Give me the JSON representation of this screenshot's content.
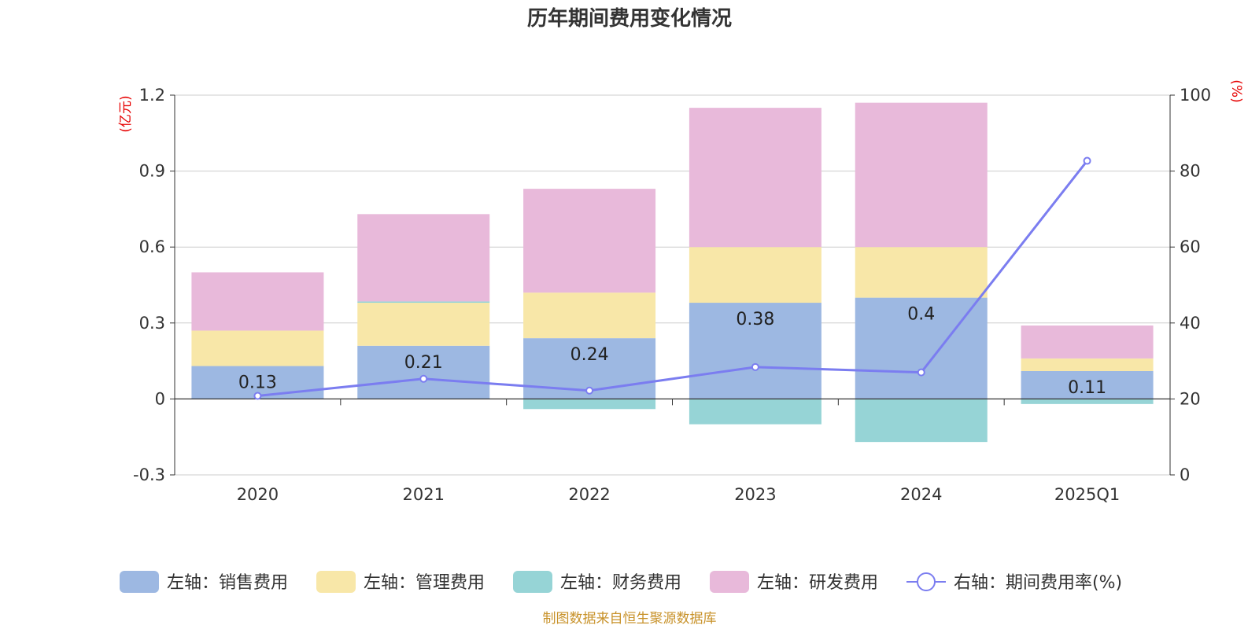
{
  "chart_data": {
    "type": "bar",
    "title": "历年期间费用变化情况",
    "categories": [
      "2020",
      "2021",
      "2022",
      "2023",
      "2024",
      "2025Q1"
    ],
    "left_axis": {
      "unit": "(亿元)",
      "ylim": [
        -0.3,
        1.2
      ],
      "ticks": [
        -0.3,
        0,
        0.3,
        0.6,
        0.9,
        1.2
      ]
    },
    "right_axis": {
      "unit": "(%)",
      "ylim": [
        0,
        100
      ],
      "ticks": [
        0,
        20,
        40,
        60,
        80,
        100
      ]
    },
    "stacked": true,
    "grid": true,
    "legend_position": "bottom",
    "series": [
      {
        "name": "左轴：销售费用",
        "type": "bar",
        "axis": "left",
        "color": "#9db8e2",
        "values": [
          0.13,
          0.21,
          0.24,
          0.38,
          0.4,
          0.11
        ]
      },
      {
        "name": "左轴：管理费用",
        "type": "bar",
        "axis": "left",
        "color": "#f8e7a8",
        "values": [
          0.14,
          0.17,
          0.18,
          0.22,
          0.2,
          0.05
        ]
      },
      {
        "name": "左轴：财务费用",
        "type": "bar",
        "axis": "left",
        "color": "#96d4d6",
        "values": [
          0.0,
          0.005,
          -0.04,
          -0.1,
          -0.17,
          -0.02
        ]
      },
      {
        "name": "左轴：研发费用",
        "type": "bar",
        "axis": "left",
        "color": "#e8b9da",
        "values": [
          0.23,
          0.345,
          0.41,
          0.55,
          0.57,
          0.13
        ]
      },
      {
        "name": "右轴：期间费用率(%)",
        "type": "line",
        "axis": "right",
        "color": "#7b7df0",
        "values": [
          20.8,
          25.3,
          22.2,
          28.4,
          27.0,
          82.7
        ]
      }
    ],
    "data_labels": [
      "0.13",
      "0.21",
      "0.24",
      "0.38",
      "0.4",
      "0.11"
    ]
  },
  "source": "制图数据来自恒生聚源数据库"
}
